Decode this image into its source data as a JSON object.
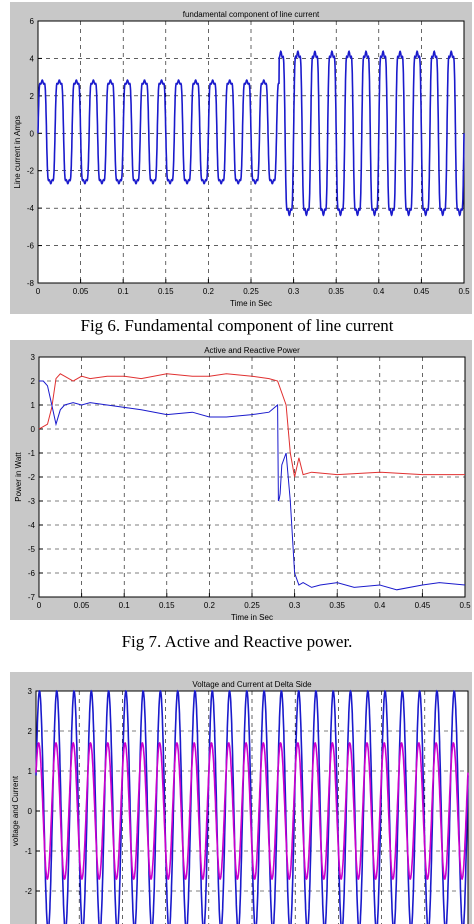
{
  "captions": {
    "fig6": "Fig 6. Fundamental component of line current",
    "fig7": "Fig 7. Active and Reactive power."
  },
  "colors": {
    "panel_bg": "#c8c8c8",
    "plot_bg": "#ffffff",
    "blue": "#1a1acc",
    "red": "#e03030",
    "magenta": "#cc00cc"
  },
  "chart_data": [
    {
      "type": "line",
      "title": "fundamental component of line current",
      "xlabel": "Time in Sec",
      "ylabel": "Line current in Amps",
      "xlim": [
        0,
        0.5
      ],
      "ylim": [
        -8,
        6
      ],
      "xticks": [
        0,
        0.05,
        0.1,
        0.15,
        0.2,
        0.25,
        0.3,
        0.35,
        0.4,
        0.45,
        0.5
      ],
      "xtick_labels": [
        "0",
        "0.05",
        "0.1",
        "0.15",
        "0.2",
        "0.25",
        "0.3",
        "0.35",
        "0.4",
        "0.45",
        "0.5"
      ],
      "yticks": [
        -8,
        -6,
        -4,
        -2,
        0,
        2,
        4,
        6
      ],
      "grid": true,
      "series": [
        {
          "color": "#1a1acc",
          "description_of_shape": "periodic current",
          "segments": [
            {
              "x_start": 0,
              "x_end": 0.283,
              "frequency_hz": 50,
              "amplitude_high": 3.7,
              "amplitude_low": -3.5
            },
            {
              "x_start": 0.283,
              "x_end": 0.5,
              "frequency_hz": 50,
              "amplitude_high": 5.7,
              "amplitude_low": -5.7
            }
          ]
        }
      ]
    },
    {
      "type": "line",
      "title": "Active and Reactive Power",
      "xlabel": "Time in Sec",
      "ylabel": "Power in Watt",
      "xlim": [
        0,
        0.5
      ],
      "ylim": [
        -7,
        3
      ],
      "xticks": [
        0,
        0.05,
        0.1,
        0.15,
        0.2,
        0.25,
        0.3,
        0.35,
        0.4,
        0.45,
        0.5
      ],
      "xtick_labels": [
        "0",
        "0.05",
        "0.1",
        "0.15",
        "0.2",
        "0.25",
        "0.3",
        "0.35",
        "0.4",
        "0.45",
        "0.5"
      ],
      "yticks": [
        -7,
        -6,
        -5,
        -4,
        -3,
        -2,
        -1,
        0,
        1,
        2,
        3
      ],
      "grid": true,
      "series": [
        {
          "color": "#e03030",
          "x": [
            0,
            0.005,
            0.01,
            0.015,
            0.02,
            0.025,
            0.03,
            0.04,
            0.05,
            0.06,
            0.08,
            0.1,
            0.12,
            0.15,
            0.18,
            0.2,
            0.22,
            0.25,
            0.27,
            0.28,
            0.29,
            0.295,
            0.3,
            0.305,
            0.31,
            0.32,
            0.35,
            0.4,
            0.45,
            0.5
          ],
          "y": [
            0,
            0.1,
            0.2,
            0.9,
            2.1,
            2.3,
            2.2,
            2.0,
            2.2,
            2.1,
            2.2,
            2.2,
            2.1,
            2.3,
            2.2,
            2.2,
            2.3,
            2.2,
            2.1,
            2.0,
            1.0,
            -1.0,
            -2.0,
            -1.2,
            -1.9,
            -1.8,
            -1.9,
            -1.8,
            -1.9,
            -1.9
          ]
        },
        {
          "color": "#1a1acc",
          "x": [
            0,
            0.005,
            0.01,
            0.015,
            0.02,
            0.025,
            0.03,
            0.04,
            0.05,
            0.06,
            0.08,
            0.1,
            0.12,
            0.15,
            0.18,
            0.2,
            0.22,
            0.25,
            0.27,
            0.28,
            0.281,
            0.282,
            0.283,
            0.285,
            0.29,
            0.295,
            0.3,
            0.305,
            0.31,
            0.32,
            0.33,
            0.35,
            0.37,
            0.4,
            0.42,
            0.45,
            0.47,
            0.5
          ],
          "y": [
            2.0,
            2.0,
            1.8,
            1.0,
            0.2,
            0.8,
            1.0,
            1.1,
            1.0,
            1.1,
            1.0,
            0.9,
            0.8,
            0.6,
            0.7,
            0.5,
            0.5,
            0.6,
            0.7,
            1.0,
            -3.0,
            -2.9,
            -2.7,
            -1.5,
            -1.0,
            -3.0,
            -6.0,
            -6.5,
            -6.4,
            -6.6,
            -6.5,
            -6.4,
            -6.6,
            -6.5,
            -6.7,
            -6.5,
            -6.4,
            -6.5
          ]
        }
      ]
    },
    {
      "type": "line",
      "title": "Voltage and Current at Delta Side",
      "xlabel": "",
      "ylabel": "voltage and Current",
      "xlim": [
        0,
        0.5
      ],
      "ylim": [
        -3,
        3
      ],
      "xticks": [
        0,
        0.05,
        0.1,
        0.15,
        0.2,
        0.25,
        0.3,
        0.35,
        0.4,
        0.45,
        0.5
      ],
      "yticks": [
        -3,
        -2,
        -1,
        0,
        1,
        2,
        3
      ],
      "ytick_labels": [
        "-3",
        "-2",
        "-1",
        "0",
        "1",
        "2",
        "3"
      ],
      "grid": true,
      "series": [
        {
          "color": "#1a1acc",
          "frequency_hz": 50,
          "amplitude": 3.0
        },
        {
          "color": "#cc00cc",
          "frequency_hz": 50,
          "amplitude": 1.7
        }
      ]
    }
  ]
}
